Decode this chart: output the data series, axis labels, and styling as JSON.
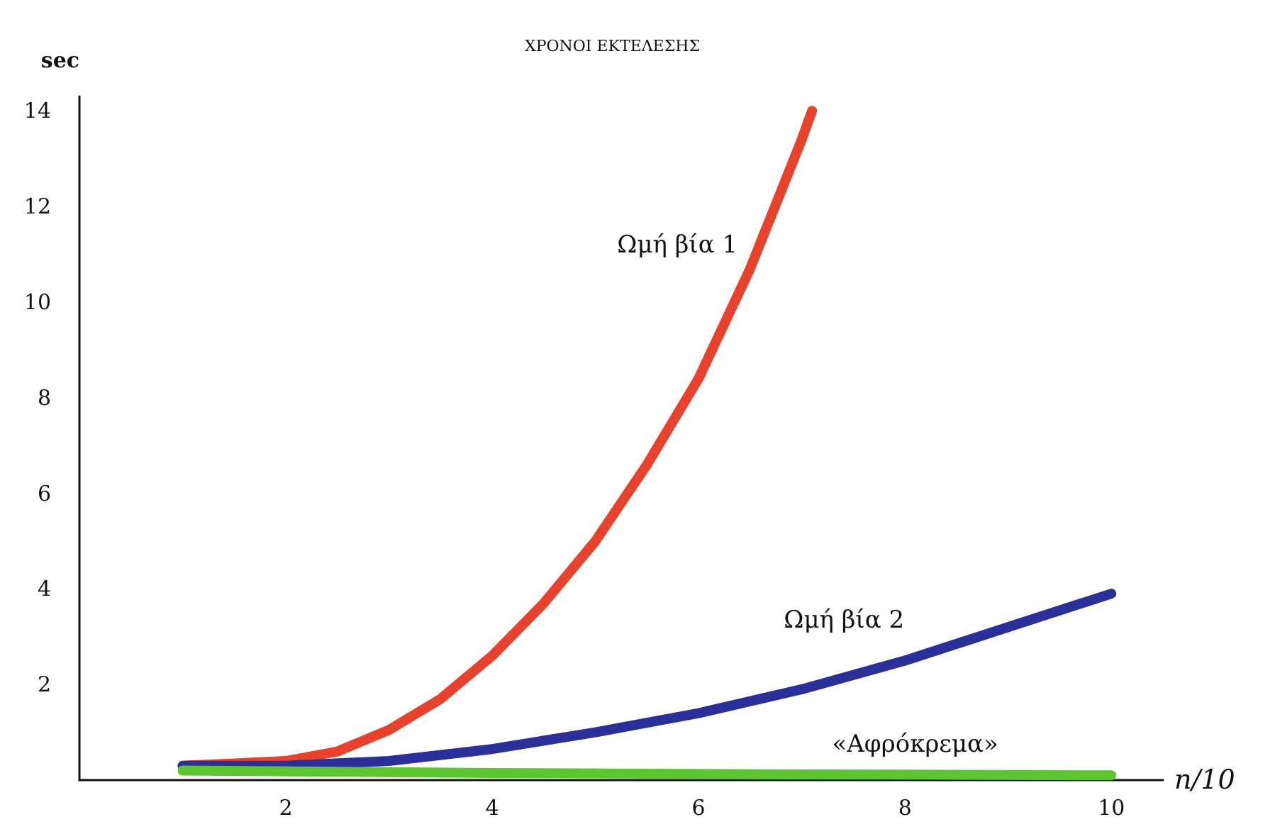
{
  "chart_data": {
    "type": "line",
    "title": "ΧΡΟΝΟΙ ΕΚΤΕΛΕΣΗΣ",
    "xlabel": "n/10",
    "ylabel": "sec",
    "x": [
      1,
      1.5,
      2,
      2.5,
      3,
      3.5,
      4,
      4.5,
      5,
      5.5,
      6,
      6.5,
      7,
      7.1
    ],
    "series": [
      {
        "name": "Ωμή βία 1",
        "color": "#e8412c",
        "values": [
          0.3,
          0.35,
          0.4,
          0.6,
          1.05,
          1.7,
          2.6,
          3.7,
          5,
          6.6,
          8.4,
          10.7,
          13.4,
          14
        ]
      },
      {
        "name": "Ωμή βία 2",
        "color": "#2a2f9a",
        "x": [
          1,
          2,
          3,
          4,
          5,
          6,
          7,
          8,
          9,
          10
        ],
        "values": [
          0.3,
          0.3,
          0.4,
          0.65,
          1,
          1.4,
          1.9,
          2.5,
          3.2,
          3.9
        ]
      },
      {
        "name": "«Αφρόκρεμα»",
        "color": "#5cc62e",
        "x": [
          1,
          4,
          7,
          10
        ],
        "values": [
          0.2,
          0.15,
          0.12,
          0.1
        ]
      }
    ],
    "xlim": [
      0,
      10.5
    ],
    "ylim": [
      0,
      14.3
    ],
    "xticks": [
      2,
      4,
      6,
      8,
      10
    ],
    "yticks": [
      2,
      4,
      6,
      8,
      10,
      12,
      14
    ],
    "grid": false,
    "legend": false,
    "marker": "none",
    "line_style": "solid"
  }
}
